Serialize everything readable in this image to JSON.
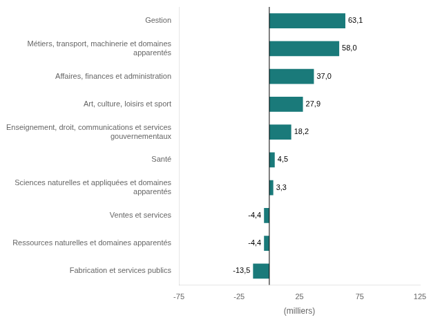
{
  "chart_data": {
    "type": "bar",
    "orientation": "horizontal",
    "categories": [
      "Fabrication et services publics",
      "Ressources naturelles et domaines apparentés",
      "Ventes et services",
      "Sciences naturelles et appliquées et domaines\napparentés",
      "Santé",
      "Enseignement, droit, communications et services\ngouvernementaux",
      "Art, culture, loisirs et sport",
      "Affaires, finances et administration",
      "Métiers, transport, machinerie et domaines\napparentés",
      "Gestion"
    ],
    "values": [
      -13.5,
      -4.4,
      -4.4,
      3.3,
      4.5,
      18.2,
      27.9,
      37.0,
      58.0,
      63.1
    ],
    "value_labels": [
      "-13,5",
      "-4,4",
      "-4,4",
      "3,3",
      "4,5",
      "18,2",
      "27,9",
      "37,0",
      "58,0",
      "63,1"
    ],
    "data_labels": true,
    "color": "#1a7a7a",
    "xlabel": "(milliers)",
    "xlim": [
      -75,
      125
    ],
    "xticks": [
      -75,
      -25,
      25,
      75,
      125
    ],
    "grid": false
  }
}
